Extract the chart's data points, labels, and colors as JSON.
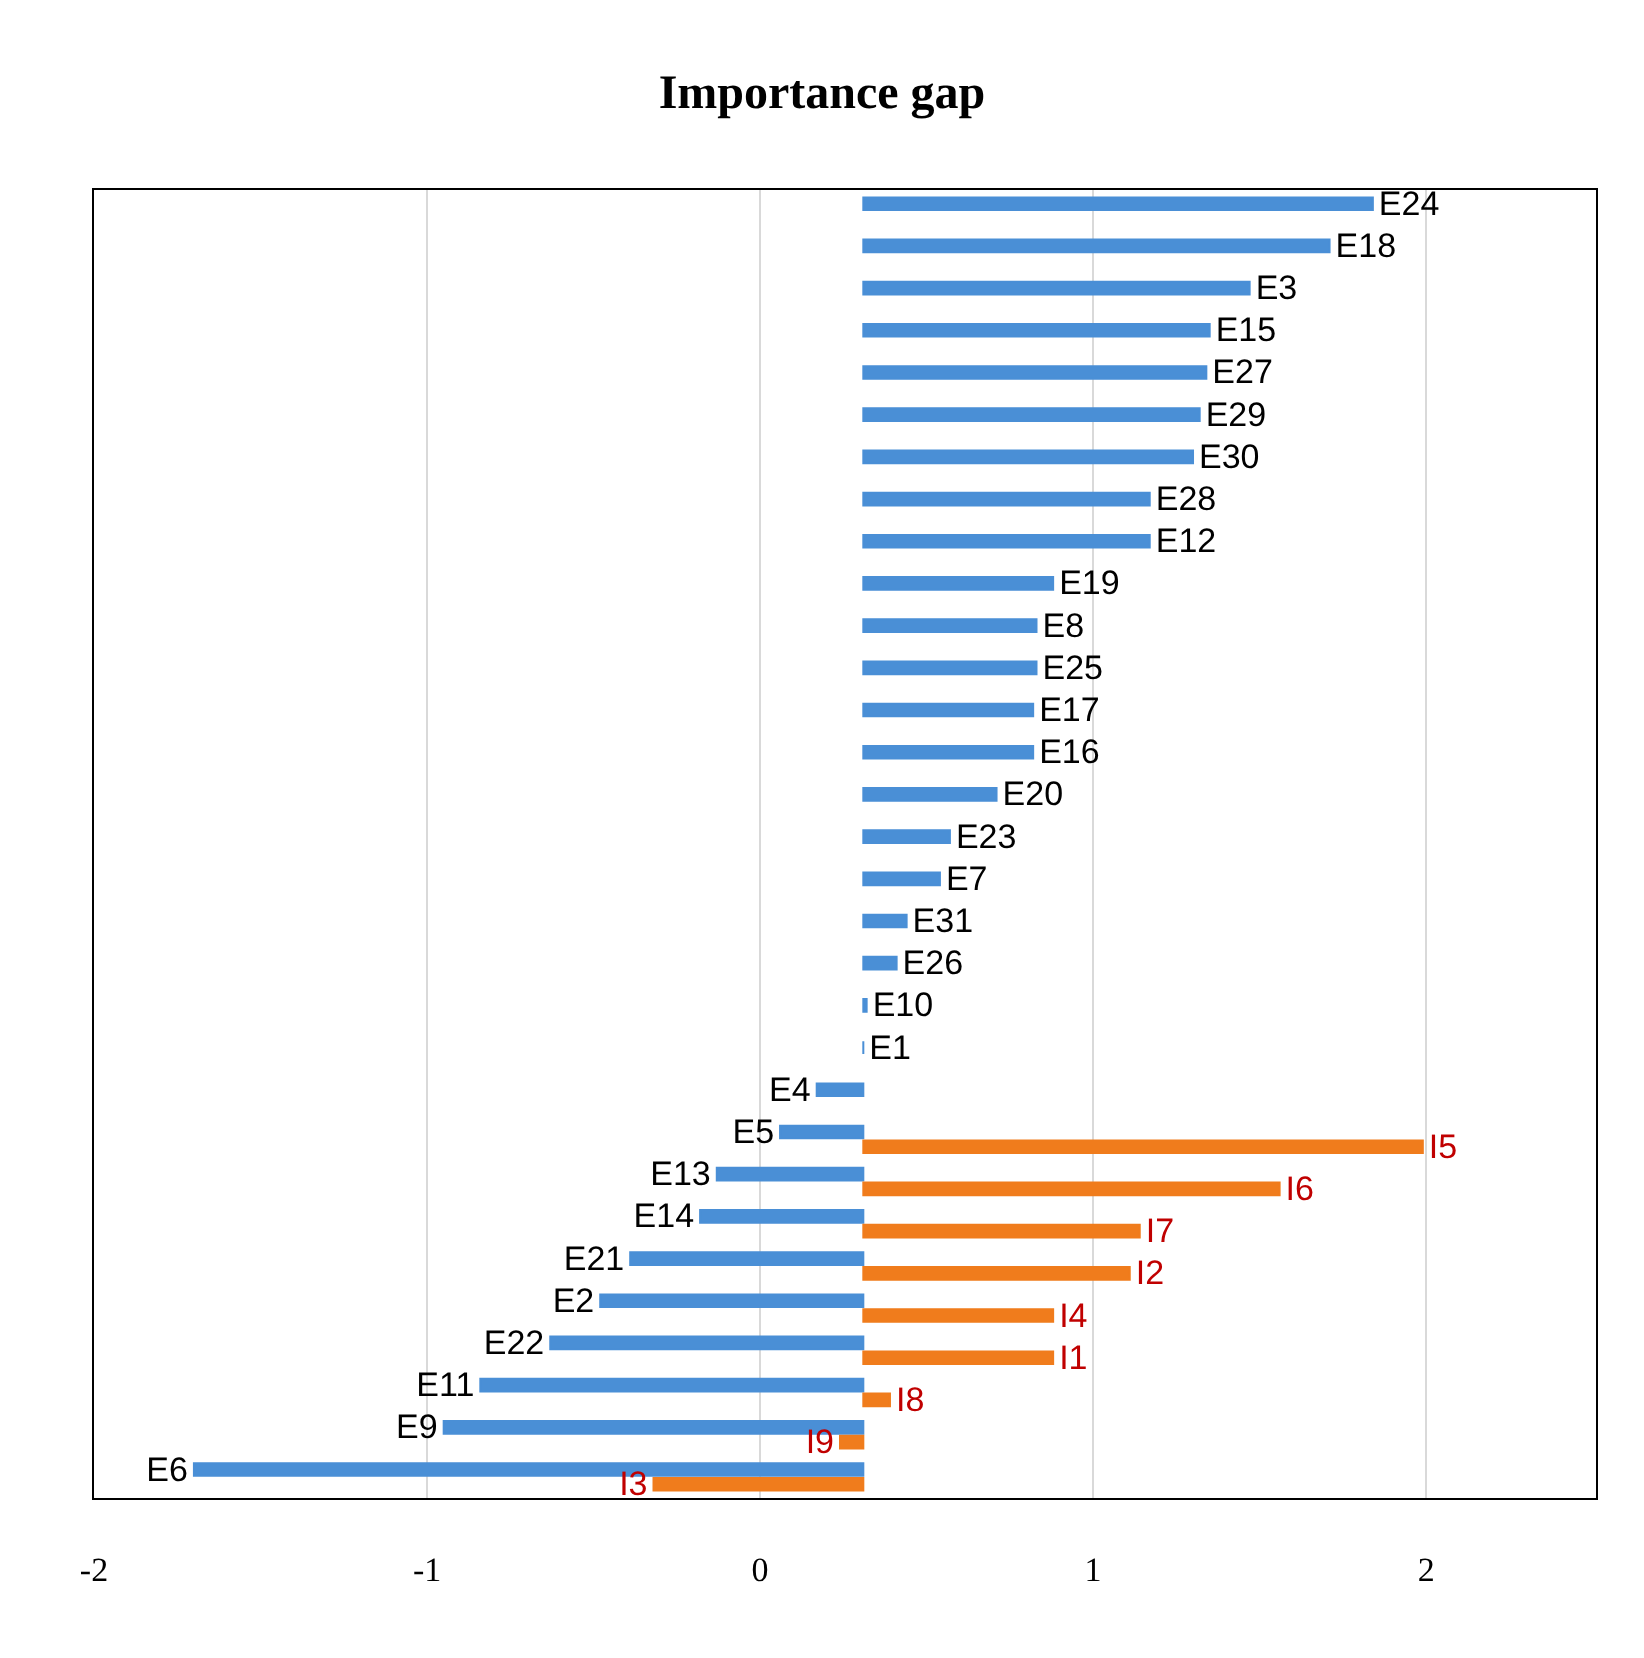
{
  "chart_data": {
    "type": "bar",
    "orientation": "horizontal",
    "title": "Importance gap",
    "categories": [
      null,
      null,
      null,
      null,
      null,
      null,
      null,
      null,
      null,
      null,
      null,
      null,
      null,
      null,
      null,
      null,
      null,
      null,
      null,
      null,
      null,
      null,
      null,
      null,
      null,
      null,
      null,
      null,
      null,
      null,
      null
    ],
    "series": [
      {
        "color": "#4a8fd6",
        "base": [
          0.31,
          0.31,
          0.31,
          0.31,
          0.31,
          0.31,
          0.31,
          0.31,
          0.31,
          0.31,
          0.31,
          0.31,
          0.31,
          0.31,
          0.31,
          0.31,
          0.31,
          0.31,
          0.31,
          0.31,
          0.31,
          0.31,
          0.31,
          0.31,
          0.31,
          0.31,
          0.31,
          0.31,
          0.31,
          0.31,
          0.31
        ],
        "values": [
          1.53,
          1.4,
          1.16,
          1.04,
          1.03,
          1.01,
          0.99,
          0.86,
          0.86,
          0.57,
          0.52,
          0.52,
          0.51,
          0.51,
          0.4,
          0.26,
          0.23,
          0.13,
          0.1,
          0.01,
          0,
          -0.14,
          -0.25,
          -0.44,
          -0.49,
          -0.7,
          -0.79,
          -0.94,
          -1.15,
          -1.26,
          -2.01
        ],
        "value_labels": [
          "E24",
          "E18",
          "E3",
          "E15",
          "E27",
          "E29",
          "E30",
          "E28",
          "E12",
          "E19",
          "E8",
          "E25",
          "E17",
          "E16",
          "E20",
          "E23",
          "E7",
          "E31",
          "E26",
          "E10",
          "E1",
          "E4",
          "E5",
          "E13",
          "E14",
          "E21",
          "E2",
          "E22",
          "E11",
          "E9",
          "E6"
        ]
      },
      {
        "color": "#f07c1c",
        "base": [
          null,
          null,
          null,
          null,
          null,
          null,
          null,
          null,
          null,
          null,
          null,
          null,
          null,
          null,
          null,
          null,
          null,
          null,
          null,
          null,
          null,
          null,
          0.31,
          0.31,
          0.31,
          0.31,
          0.31,
          0.31,
          0.31,
          0.31,
          0.31
        ],
        "values": [
          null,
          null,
          null,
          null,
          null,
          null,
          null,
          null,
          null,
          null,
          null,
          null,
          null,
          null,
          null,
          null,
          null,
          null,
          null,
          null,
          null,
          null,
          1.68,
          1.25,
          0.83,
          0.8,
          0.57,
          0.57,
          0.08,
          -0.07,
          -0.63
        ],
        "value_labels": [
          null,
          null,
          null,
          null,
          null,
          null,
          null,
          null,
          null,
          null,
          null,
          null,
          null,
          null,
          null,
          null,
          null,
          null,
          null,
          null,
          null,
          null,
          "I5",
          "I6",
          "I7",
          "I2",
          "I4",
          "I1",
          "I8",
          "I9",
          "I3"
        ]
      }
    ],
    "xlim": [
      -2,
      2.51
    ],
    "xticks": [
      -2,
      -1,
      0,
      1,
      2
    ],
    "grid": "x",
    "legend": false,
    "tick_labels": "x"
  }
}
